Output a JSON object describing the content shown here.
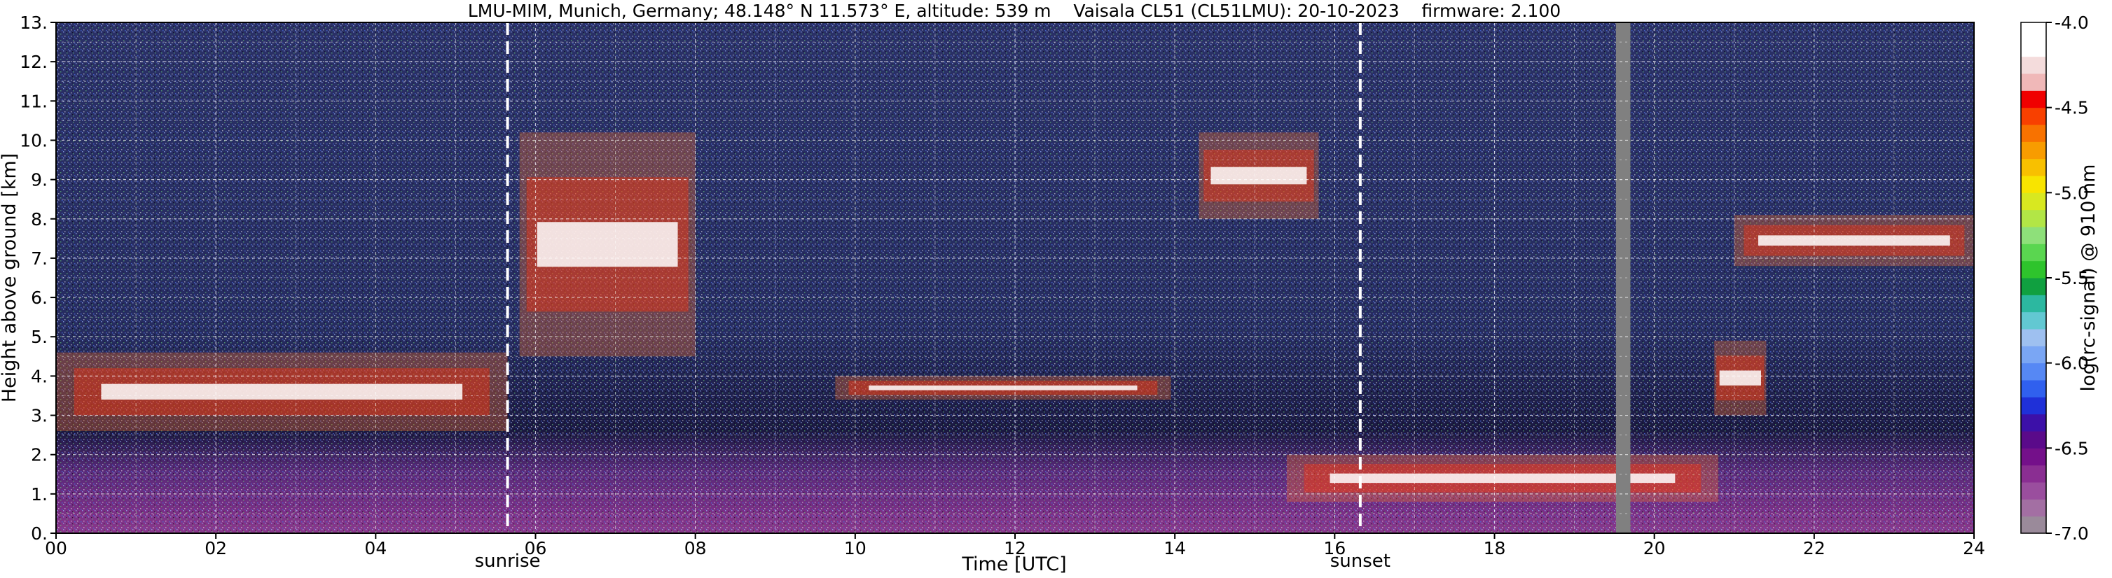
{
  "chart_data": {
    "type": "heatmap",
    "title": "LMU-MIM, Munich, Germany; 48.148° N 11.573° E, altitude: 539 m    Vaisala CL51 (CL51LMU): 20-10-2023    firmware: 2.100",
    "xlabel": "Time [UTC]",
    "ylabel": "Height above ground [km]",
    "xlim": [
      0,
      24
    ],
    "ylim": [
      0,
      13
    ],
    "x_ticks": [
      "00",
      "02",
      "04",
      "06",
      "08",
      "10",
      "12",
      "14",
      "16",
      "18",
      "20",
      "22",
      "24"
    ],
    "y_ticks": [
      "0.",
      "1.",
      "2.",
      "3.",
      "4.",
      "5.",
      "6.",
      "7.",
      "8.",
      "9.",
      "10.",
      "11.",
      "12.",
      "13."
    ],
    "grid": true,
    "vertical_markers": [
      {
        "label": "sunrise",
        "time_utc": 5.65
      },
      {
        "label": "sunset",
        "time_utc": 16.32
      }
    ],
    "data_gap": {
      "start_utc": 19.52,
      "end_utc": 19.7
    },
    "colorbar": {
      "label": "log(rc-signal) @ 910 nm",
      "range": [
        -7.0,
        -4.0
      ],
      "ticks": [
        "-4.0",
        "-4.5",
        "-5.0",
        "-5.5",
        "-6.0",
        "-6.5",
        "-7.0"
      ],
      "colors": [
        "#9a8a9a",
        "#a36fa3",
        "#9a4e9e",
        "#8a2e92",
        "#74108a",
        "#5a0a8a",
        "#3c10a8",
        "#1f30d8",
        "#3060ee",
        "#5688f4",
        "#7aa6f4",
        "#9ec0f0",
        "#62c8d2",
        "#2cb8a0",
        "#10a040",
        "#2ec42c",
        "#5ad650",
        "#8ee07a",
        "#b2e646",
        "#d8e820",
        "#f8e400",
        "#f8c000",
        "#f89c00",
        "#f87200",
        "#f84000",
        "#f00000",
        "#f0b8b8",
        "#f4dcdc",
        "#ffffff",
        "#ffffff"
      ]
    },
    "features": [
      {
        "type": "cloud_layer",
        "time_utc": [
          0.0,
          5.65
        ],
        "height_km": [
          2.6,
          4.6
        ]
      },
      {
        "type": "cloud_layer",
        "time_utc": [
          5.8,
          8.0
        ],
        "height_km": [
          4.5,
          10.2
        ]
      },
      {
        "type": "cloud_layer",
        "time_utc": [
          9.75,
          13.95
        ],
        "height_km": [
          3.4,
          4.0
        ]
      },
      {
        "type": "cloud_layer",
        "time_utc": [
          14.3,
          15.8
        ],
        "height_km": [
          8.0,
          10.2
        ]
      },
      {
        "type": "cloud_layer",
        "time_utc": [
          15.4,
          20.8
        ],
        "height_km": [
          0.8,
          2.0
        ]
      },
      {
        "type": "cloud_layer",
        "time_utc": [
          21.0,
          24.0
        ],
        "height_km": [
          6.8,
          8.1
        ]
      },
      {
        "type": "cloud_layer",
        "time_utc": [
          20.75,
          21.4
        ],
        "height_km": [
          3.0,
          4.9
        ]
      }
    ]
  }
}
